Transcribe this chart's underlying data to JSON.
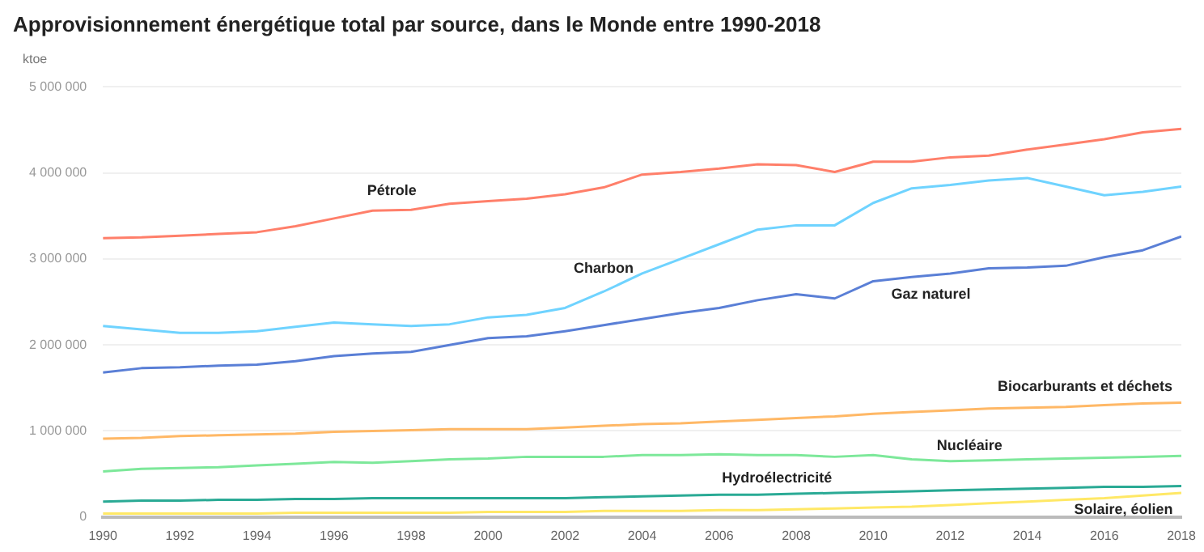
{
  "chart_data": {
    "type": "line",
    "title": "Approvisionnement énergétique total par source, dans le Monde entre 1990-2018",
    "ylabel": "ktoe",
    "x": [
      1990,
      1991,
      1992,
      1993,
      1994,
      1995,
      1996,
      1997,
      1998,
      1999,
      2000,
      2001,
      2002,
      2003,
      2004,
      2005,
      2006,
      2007,
      2008,
      2009,
      2010,
      2011,
      2012,
      2013,
      2014,
      2015,
      2016,
      2017,
      2018
    ],
    "xlim": [
      1990,
      2018
    ],
    "xticks": [
      1990,
      1992,
      1994,
      1996,
      1998,
      2000,
      2002,
      2004,
      2006,
      2008,
      2010,
      2012,
      2014,
      2016,
      2018
    ],
    "ylim": [
      0,
      5000000
    ],
    "yticks": [
      {
        "value": 0,
        "label": "0"
      },
      {
        "value": 1000000,
        "label": "1 000 000"
      },
      {
        "value": 2000000,
        "label": "2 000 000"
      },
      {
        "value": 3000000,
        "label": "3 000 000"
      },
      {
        "value": 4000000,
        "label": "4 000 000"
      },
      {
        "value": 5000000,
        "label": "5 000 000"
      }
    ],
    "grid": "y",
    "legend": false,
    "marker": "none",
    "line_style": "solid",
    "series": [
      {
        "name": "Pétrole",
        "color": "#ff7f6a",
        "values": [
          3240000,
          3250000,
          3270000,
          3290000,
          3310000,
          3380000,
          3470000,
          3560000,
          3570000,
          3640000,
          3670000,
          3700000,
          3750000,
          3830000,
          3980000,
          4010000,
          4050000,
          4100000,
          4090000,
          4010000,
          4130000,
          4130000,
          4180000,
          4200000,
          4270000,
          4330000,
          4390000,
          4470000,
          4510000
        ]
      },
      {
        "name": "Charbon",
        "color": "#6fd3ff",
        "values": [
          2220000,
          2180000,
          2140000,
          2140000,
          2160000,
          2210000,
          2260000,
          2240000,
          2220000,
          2240000,
          2320000,
          2350000,
          2430000,
          2620000,
          2830000,
          3000000,
          3170000,
          3340000,
          3390000,
          3390000,
          3650000,
          3820000,
          3860000,
          3910000,
          3940000,
          3840000,
          3740000,
          3780000,
          3840000
        ]
      },
      {
        "name": "Gaz naturel",
        "color": "#5a7fd6",
        "values": [
          1680000,
          1730000,
          1740000,
          1760000,
          1770000,
          1810000,
          1870000,
          1900000,
          1920000,
          2000000,
          2080000,
          2100000,
          2160000,
          2230000,
          2300000,
          2370000,
          2430000,
          2520000,
          2590000,
          2540000,
          2740000,
          2790000,
          2830000,
          2890000,
          2900000,
          2920000,
          3020000,
          3100000,
          3260000
        ]
      },
      {
        "name": "Biocarburants et déchets",
        "color": "#ffb866",
        "values": [
          910000,
          920000,
          940000,
          950000,
          960000,
          970000,
          990000,
          1000000,
          1010000,
          1020000,
          1020000,
          1020000,
          1040000,
          1060000,
          1080000,
          1090000,
          1110000,
          1130000,
          1150000,
          1170000,
          1200000,
          1220000,
          1240000,
          1260000,
          1270000,
          1280000,
          1300000,
          1320000,
          1330000
        ]
      },
      {
        "name": "Nucléaire",
        "color": "#7de89a",
        "values": [
          530000,
          560000,
          570000,
          580000,
          600000,
          620000,
          640000,
          630000,
          650000,
          670000,
          680000,
          700000,
          700000,
          700000,
          720000,
          720000,
          730000,
          720000,
          720000,
          700000,
          720000,
          670000,
          650000,
          660000,
          670000,
          680000,
          690000,
          700000,
          710000
        ]
      },
      {
        "name": "Hydroélectricité",
        "color": "#2aaa95",
        "values": [
          180000,
          190000,
          190000,
          200000,
          200000,
          210000,
          210000,
          220000,
          220000,
          220000,
          220000,
          220000,
          220000,
          230000,
          240000,
          250000,
          260000,
          260000,
          270000,
          280000,
          290000,
          300000,
          310000,
          320000,
          330000,
          340000,
          350000,
          350000,
          360000
        ]
      },
      {
        "name": "Solaire, éolien",
        "color": "#ffe866",
        "values": [
          40000,
          40000,
          40000,
          40000,
          40000,
          50000,
          50000,
          50000,
          50000,
          50000,
          60000,
          60000,
          60000,
          70000,
          70000,
          70000,
          80000,
          80000,
          90000,
          100000,
          110000,
          120000,
          140000,
          160000,
          180000,
          200000,
          220000,
          250000,
          280000
        ]
      }
    ]
  }
}
